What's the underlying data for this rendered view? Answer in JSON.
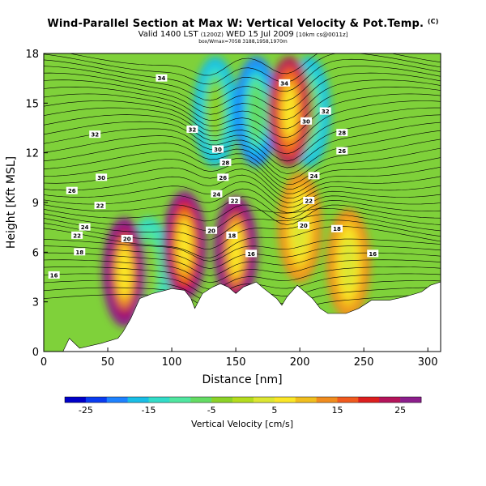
{
  "header": {
    "title": "Wind-Parallel Section at Max W: Vertical Velocity & Pot.Temp.",
    "title_mark": "(C)",
    "valid_line": "Valid 1400 LST",
    "valid_small": "(1200Z)",
    "valid_day": "WED 15 Jul 2009",
    "valid_tail": "[10km cs@0011z]",
    "subline": "box/Wmax=7058 3188,1958,1970m"
  },
  "chart_data": {
    "type": "heatmap",
    "xlabel": "Distance [nm]",
    "ylabel": "Height [Kft MSL]",
    "xlim": [
      0,
      310
    ],
    "ylim": [
      0,
      18
    ],
    "x_ticks": [
      0,
      50,
      100,
      150,
      200,
      250,
      300
    ],
    "y_ticks": [
      0,
      3,
      6,
      9,
      12,
      15,
      18
    ],
    "terrain_kft": [
      [
        0,
        0
      ],
      [
        15,
        0
      ],
      [
        20,
        0.8
      ],
      [
        28,
        0.2
      ],
      [
        45,
        0.5
      ],
      [
        58,
        0.8
      ],
      [
        62,
        1.2
      ],
      [
        68,
        2
      ],
      [
        75,
        3.2
      ],
      [
        85,
        3.5
      ],
      [
        100,
        3.8
      ],
      [
        110,
        3.7
      ],
      [
        115,
        3.2
      ],
      [
        118,
        2.6
      ],
      [
        124,
        3.5
      ],
      [
        132,
        3.9
      ],
      [
        138,
        4.1
      ],
      [
        144,
        3.9
      ],
      [
        150,
        3.5
      ],
      [
        156,
        3.9
      ],
      [
        166,
        4.2
      ],
      [
        172,
        3.8
      ],
      [
        182,
        3.2
      ],
      [
        186,
        2.8
      ],
      [
        190,
        3.3
      ],
      [
        198,
        4.0
      ],
      [
        210,
        3.2
      ],
      [
        216,
        2.6
      ],
      [
        222,
        2.3
      ],
      [
        236,
        2.3
      ],
      [
        246,
        2.6
      ],
      [
        256,
        3.1
      ],
      [
        270,
        3.1
      ],
      [
        282,
        3.3
      ],
      [
        295,
        3.6
      ],
      [
        302,
        4.0
      ],
      [
        310,
        4.2
      ]
    ],
    "updrafts": [
      {
        "x": 63,
        "y": 4.8,
        "w": 28
      },
      {
        "x": 110,
        "y": 6.4,
        "w": 25
      },
      {
        "x": 150,
        "y": 6.1,
        "w": 28
      },
      {
        "x": 192,
        "y": 14.5,
        "w": 22
      },
      {
        "x": 200,
        "y": 7.5,
        "w": 14
      },
      {
        "x": 238,
        "y": 5.3,
        "w": 12
      }
    ],
    "downdrafts": [
      {
        "x": 82,
        "y": 4.8,
        "w": -12
      },
      {
        "x": 134,
        "y": 14.5,
        "w": -15
      },
      {
        "x": 166,
        "y": 14.5,
        "w": -20
      },
      {
        "x": 207,
        "y": 14.5,
        "w": -16
      }
    ],
    "colorbar": {
      "label": "Vertical Velocity [cm/s]",
      "min": -25,
      "max": 25,
      "labels": [
        -25,
        -15,
        -5,
        5,
        15,
        25
      ]
    },
    "contour_labels": [
      {
        "text": "34",
        "x": 92,
        "y": 16.5
      },
      {
        "text": "34",
        "x": 188,
        "y": 16.2
      },
      {
        "text": "32",
        "x": 220,
        "y": 14.5
      },
      {
        "text": "32",
        "x": 40,
        "y": 13.1
      },
      {
        "text": "32",
        "x": 116,
        "y": 13.4
      },
      {
        "text": "30",
        "x": 205,
        "y": 13.9
      },
      {
        "text": "30",
        "x": 136,
        "y": 12.2
      },
      {
        "text": "30",
        "x": 45,
        "y": 10.5
      },
      {
        "text": "28",
        "x": 142,
        "y": 11.4
      },
      {
        "text": "28",
        "x": 233,
        "y": 13.2
      },
      {
        "text": "26",
        "x": 233,
        "y": 12.1
      },
      {
        "text": "26",
        "x": 140,
        "y": 10.5
      },
      {
        "text": "26",
        "x": 22,
        "y": 9.7
      },
      {
        "text": "24",
        "x": 211,
        "y": 10.6
      },
      {
        "text": "24",
        "x": 135,
        "y": 9.5
      },
      {
        "text": "24",
        "x": 32,
        "y": 7.5
      },
      {
        "text": "22",
        "x": 207,
        "y": 9.1
      },
      {
        "text": "22",
        "x": 149,
        "y": 9.1
      },
      {
        "text": "22",
        "x": 26,
        "y": 7.0
      },
      {
        "text": "22",
        "x": 44,
        "y": 8.8
      },
      {
        "text": "20",
        "x": 203,
        "y": 7.6
      },
      {
        "text": "20",
        "x": 131,
        "y": 7.3
      },
      {
        "text": "20",
        "x": 65,
        "y": 6.8
      },
      {
        "text": "18",
        "x": 229,
        "y": 7.4
      },
      {
        "text": "18",
        "x": 147,
        "y": 7.0
      },
      {
        "text": "18",
        "x": 28,
        "y": 6.0
      },
      {
        "text": "16",
        "x": 162,
        "y": 5.9
      },
      {
        "text": "16",
        "x": 257,
        "y": 5.9
      },
      {
        "text": "16",
        "x": 8,
        "y": 4.6
      }
    ]
  }
}
